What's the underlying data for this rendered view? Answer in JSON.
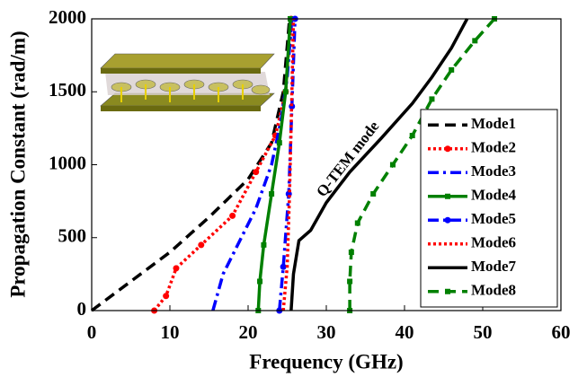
{
  "chart_data": {
    "type": "line",
    "xlabel": "Frequency (GHz)",
    "ylabel": "Propagation Constant (rad/m)",
    "xlim": [
      0,
      60
    ],
    "xticks": [
      0,
      10,
      20,
      30,
      40,
      50,
      60
    ],
    "ylim": [
      0,
      2000
    ],
    "yticks": [
      0,
      500,
      1000,
      1500,
      2000
    ],
    "annotation": "Q-TEM mode",
    "legend": "lower right",
    "series": [
      {
        "name": "Mode1",
        "color": "#000000",
        "style": "dashed",
        "marker": null,
        "x": [
          0,
          5,
          10,
          15,
          20,
          23,
          24.5,
          25.3
        ],
        "values": [
          0,
          200,
          400,
          640,
          900,
          1150,
          1500,
          2000
        ]
      },
      {
        "name": "Mode2",
        "color": "#ff0000",
        "style": "dotted",
        "marker": "circle",
        "x": [
          8,
          9.5,
          10.8,
          14,
          18,
          21,
          23.5,
          24.8,
          25.5
        ],
        "values": [
          0,
          100,
          290,
          450,
          650,
          950,
          1200,
          1500,
          2000
        ]
      },
      {
        "name": "Mode3",
        "color": "#0000ff",
        "style": "dashdot",
        "marker": null,
        "x": [
          15.5,
          16.8,
          21,
          23,
          24.2,
          25,
          25.6
        ],
        "values": [
          0,
          250,
          700,
          1000,
          1300,
          1600,
          2000
        ]
      },
      {
        "name": "Mode4",
        "color": "#008000",
        "style": "solid",
        "marker": "square",
        "x": [
          21.3,
          21.5,
          22,
          23,
          24,
          24.8,
          25.4
        ],
        "values": [
          0,
          200,
          450,
          800,
          1150,
          1500,
          2000
        ]
      },
      {
        "name": "Mode5",
        "color": "#0000ff",
        "style": "dashdot",
        "marker": "circle",
        "x": [
          24,
          24.5,
          25.2,
          25.6,
          26
        ],
        "values": [
          0,
          300,
          800,
          1400,
          2000
        ]
      },
      {
        "name": "Mode6",
        "color": "#ff0000",
        "style": "dotted",
        "marker": null,
        "x": [
          24.5,
          25,
          25.3,
          25.6,
          25.8
        ],
        "values": [
          0,
          300,
          800,
          1500,
          2000
        ]
      },
      {
        "name": "Mode7",
        "color": "#000000",
        "style": "solid",
        "marker": null,
        "x": [
          25.5,
          25.8,
          26.5,
          28,
          30,
          33,
          37,
          41,
          43.5,
          46,
          48
        ],
        "values": [
          0,
          250,
          480,
          550,
          740,
          950,
          1180,
          1420,
          1600,
          1800,
          2000
        ]
      },
      {
        "name": "Mode8",
        "color": "#008000",
        "style": "dashed",
        "marker": "square",
        "x": [
          33,
          33,
          33.2,
          34,
          36,
          38.5,
          41,
          43.5,
          46,
          49,
          51.5
        ],
        "values": [
          0,
          200,
          400,
          600,
          800,
          1000,
          1200,
          1450,
          1650,
          1850,
          2000
        ]
      }
    ]
  }
}
